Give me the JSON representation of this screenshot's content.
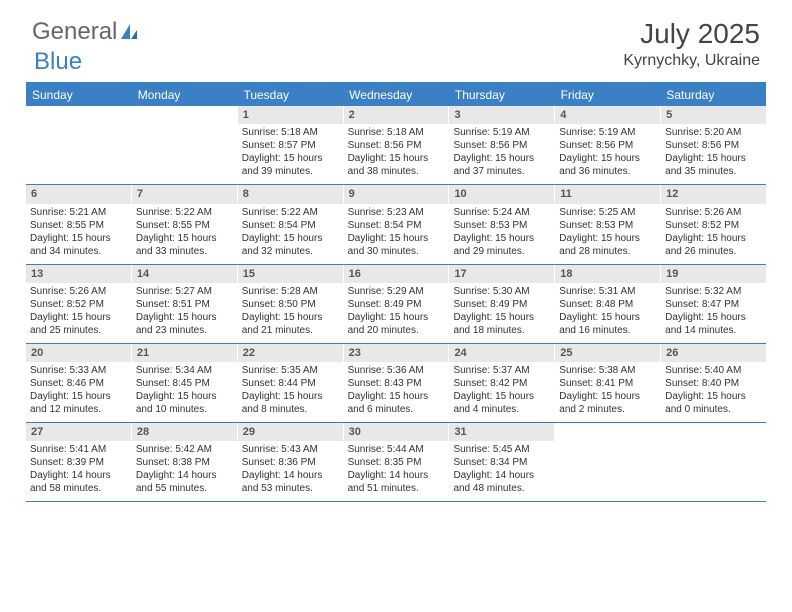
{
  "logo": {
    "part1": "General",
    "part2": "Blue"
  },
  "title": "July 2025",
  "location": "Kyrnychky, Ukraine",
  "colors": {
    "accent": "#3b7fc4",
    "daynum_bg": "#e8e8e8",
    "text": "#333333",
    "header_text": "#444444"
  },
  "weekdays": [
    "Sunday",
    "Monday",
    "Tuesday",
    "Wednesday",
    "Thursday",
    "Friday",
    "Saturday"
  ],
  "weeks": [
    [
      {
        "n": "",
        "sr": "",
        "ss": "",
        "dl": ""
      },
      {
        "n": "",
        "sr": "",
        "ss": "",
        "dl": ""
      },
      {
        "n": "1",
        "sr": "5:18 AM",
        "ss": "8:57 PM",
        "dl": "15 hours and 39 minutes."
      },
      {
        "n": "2",
        "sr": "5:18 AM",
        "ss": "8:56 PM",
        "dl": "15 hours and 38 minutes."
      },
      {
        "n": "3",
        "sr": "5:19 AM",
        "ss": "8:56 PM",
        "dl": "15 hours and 37 minutes."
      },
      {
        "n": "4",
        "sr": "5:19 AM",
        "ss": "8:56 PM",
        "dl": "15 hours and 36 minutes."
      },
      {
        "n": "5",
        "sr": "5:20 AM",
        "ss": "8:56 PM",
        "dl": "15 hours and 35 minutes."
      }
    ],
    [
      {
        "n": "6",
        "sr": "5:21 AM",
        "ss": "8:55 PM",
        "dl": "15 hours and 34 minutes."
      },
      {
        "n": "7",
        "sr": "5:22 AM",
        "ss": "8:55 PM",
        "dl": "15 hours and 33 minutes."
      },
      {
        "n": "8",
        "sr": "5:22 AM",
        "ss": "8:54 PM",
        "dl": "15 hours and 32 minutes."
      },
      {
        "n": "9",
        "sr": "5:23 AM",
        "ss": "8:54 PM",
        "dl": "15 hours and 30 minutes."
      },
      {
        "n": "10",
        "sr": "5:24 AM",
        "ss": "8:53 PM",
        "dl": "15 hours and 29 minutes."
      },
      {
        "n": "11",
        "sr": "5:25 AM",
        "ss": "8:53 PM",
        "dl": "15 hours and 28 minutes."
      },
      {
        "n": "12",
        "sr": "5:26 AM",
        "ss": "8:52 PM",
        "dl": "15 hours and 26 minutes."
      }
    ],
    [
      {
        "n": "13",
        "sr": "5:26 AM",
        "ss": "8:52 PM",
        "dl": "15 hours and 25 minutes."
      },
      {
        "n": "14",
        "sr": "5:27 AM",
        "ss": "8:51 PM",
        "dl": "15 hours and 23 minutes."
      },
      {
        "n": "15",
        "sr": "5:28 AM",
        "ss": "8:50 PM",
        "dl": "15 hours and 21 minutes."
      },
      {
        "n": "16",
        "sr": "5:29 AM",
        "ss": "8:49 PM",
        "dl": "15 hours and 20 minutes."
      },
      {
        "n": "17",
        "sr": "5:30 AM",
        "ss": "8:49 PM",
        "dl": "15 hours and 18 minutes."
      },
      {
        "n": "18",
        "sr": "5:31 AM",
        "ss": "8:48 PM",
        "dl": "15 hours and 16 minutes."
      },
      {
        "n": "19",
        "sr": "5:32 AM",
        "ss": "8:47 PM",
        "dl": "15 hours and 14 minutes."
      }
    ],
    [
      {
        "n": "20",
        "sr": "5:33 AM",
        "ss": "8:46 PM",
        "dl": "15 hours and 12 minutes."
      },
      {
        "n": "21",
        "sr": "5:34 AM",
        "ss": "8:45 PM",
        "dl": "15 hours and 10 minutes."
      },
      {
        "n": "22",
        "sr": "5:35 AM",
        "ss": "8:44 PM",
        "dl": "15 hours and 8 minutes."
      },
      {
        "n": "23",
        "sr": "5:36 AM",
        "ss": "8:43 PM",
        "dl": "15 hours and 6 minutes."
      },
      {
        "n": "24",
        "sr": "5:37 AM",
        "ss": "8:42 PM",
        "dl": "15 hours and 4 minutes."
      },
      {
        "n": "25",
        "sr": "5:38 AM",
        "ss": "8:41 PM",
        "dl": "15 hours and 2 minutes."
      },
      {
        "n": "26",
        "sr": "5:40 AM",
        "ss": "8:40 PM",
        "dl": "15 hours and 0 minutes."
      }
    ],
    [
      {
        "n": "27",
        "sr": "5:41 AM",
        "ss": "8:39 PM",
        "dl": "14 hours and 58 minutes."
      },
      {
        "n": "28",
        "sr": "5:42 AM",
        "ss": "8:38 PM",
        "dl": "14 hours and 55 minutes."
      },
      {
        "n": "29",
        "sr": "5:43 AM",
        "ss": "8:36 PM",
        "dl": "14 hours and 53 minutes."
      },
      {
        "n": "30",
        "sr": "5:44 AM",
        "ss": "8:35 PM",
        "dl": "14 hours and 51 minutes."
      },
      {
        "n": "31",
        "sr": "5:45 AM",
        "ss": "8:34 PM",
        "dl": "14 hours and 48 minutes."
      },
      {
        "n": "",
        "sr": "",
        "ss": "",
        "dl": ""
      },
      {
        "n": "",
        "sr": "",
        "ss": "",
        "dl": ""
      }
    ]
  ],
  "labels": {
    "sunrise": "Sunrise:",
    "sunset": "Sunset:",
    "daylight": "Daylight:"
  }
}
